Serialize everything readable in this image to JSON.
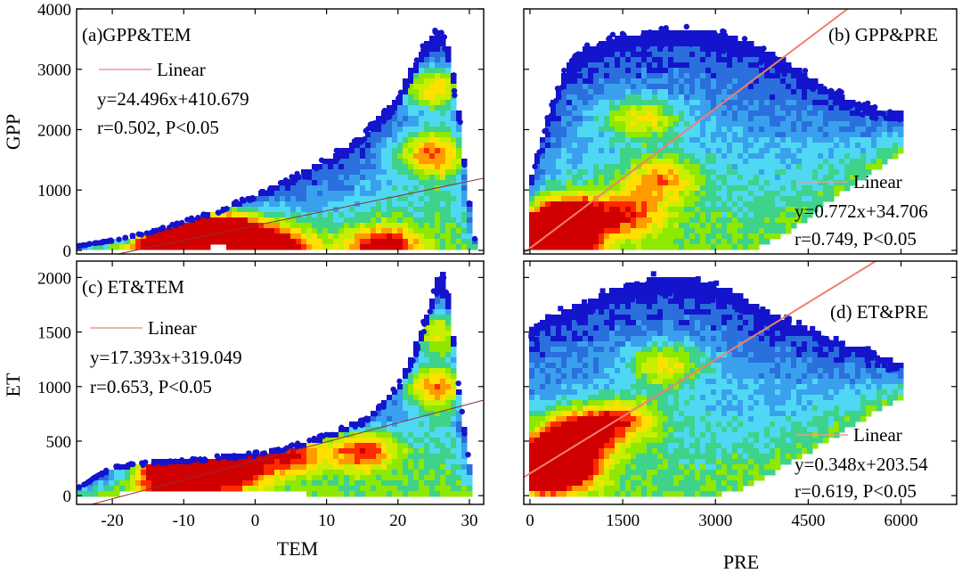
{
  "figure": {
    "x_label_left": "TEM",
    "x_label_right": "PRE",
    "y_label_top": "GPP",
    "y_label_bottom": "ET"
  },
  "colors": {
    "density": [
      "#1414cc",
      "#2a6fdc",
      "#3aa0ee",
      "#4fd8f4",
      "#3fd28a",
      "#8ee800",
      "#c8ee00",
      "#ffe000",
      "#ff9a00",
      "#ff2a00",
      "#d00000"
    ],
    "fit_line_a": "#8b2f3a",
    "fit_line_b": "#f08070",
    "legend_line": "#e89a96"
  },
  "chart_data": [
    {
      "id": "a",
      "type": "scatter",
      "subtype": "density",
      "title": "(a)GPP&TEM",
      "xlabel": "TEM",
      "ylabel": "GPP",
      "xlim": [
        -25,
        32
      ],
      "ylim": [
        -60,
        4000
      ],
      "xticks": [
        -20,
        -10,
        0,
        10,
        20,
        30
      ],
      "yticks": [
        0,
        1000,
        2000,
        3000,
        4000
      ],
      "legend": "Linear",
      "equation": "y=24.496x+410.679",
      "stats": "r=0.502, P<0.05",
      "fit": {
        "slope": 24.496,
        "intercept": 410.679
      },
      "envelope": {
        "upper": [
          [
            -25,
            70
          ],
          [
            -20,
            170
          ],
          [
            -15,
            300
          ],
          [
            -10,
            480
          ],
          [
            -5,
            680
          ],
          [
            0,
            920
          ],
          [
            5,
            1200
          ],
          [
            10,
            1520
          ],
          [
            15,
            1900
          ],
          [
            20,
            2550
          ],
          [
            22,
            3050
          ],
          [
            24,
            3450
          ],
          [
            25.5,
            3640
          ],
          [
            26.5,
            3580
          ],
          [
            27.5,
            3150
          ],
          [
            28.5,
            2300
          ],
          [
            29.5,
            1300
          ],
          [
            30.5,
            300
          ],
          [
            31,
            80
          ]
        ],
        "lower": [
          [
            -25,
            0
          ],
          [
            -15,
            40
          ],
          [
            -5,
            60
          ],
          [
            5,
            40
          ],
          [
            15,
            20
          ],
          [
            25,
            10
          ],
          [
            31,
            10
          ]
        ]
      },
      "density_peaks": [
        [
          -12,
          160,
          0.95
        ],
        [
          -8,
          210,
          0.85
        ],
        [
          -3,
          300,
          0.75
        ],
        [
          3,
          40,
          0.6
        ],
        [
          25,
          1600,
          0.55
        ],
        [
          25,
          2700,
          0.55
        ],
        [
          18,
          40,
          0.6
        ]
      ]
    },
    {
      "id": "b",
      "type": "scatter",
      "subtype": "density",
      "title": "(b) GPP&PRE",
      "xlabel": "PRE",
      "xlim": [
        -100,
        6900
      ],
      "ylim": [
        -60,
        4000
      ],
      "xticks": [
        0,
        1500,
        3000,
        4500,
        6000
      ],
      "yticks": [
        0,
        1000,
        2000,
        3000,
        4000
      ],
      "legend": "Linear",
      "equation": "y=0.772x+34.706",
      "stats": "r=0.749, P<0.05",
      "fit": {
        "slope": 0.772,
        "intercept": 34.706
      },
      "envelope": {
        "upper": [
          [
            0,
            1100
          ],
          [
            300,
            2300
          ],
          [
            600,
            3050
          ],
          [
            900,
            3350
          ],
          [
            1200,
            3480
          ],
          [
            1800,
            3600
          ],
          [
            2400,
            3650
          ],
          [
            3000,
            3600
          ],
          [
            3600,
            3450
          ],
          [
            4200,
            3100
          ],
          [
            4800,
            2700
          ],
          [
            5400,
            2400
          ],
          [
            6000,
            2300
          ]
        ],
        "lower": [
          [
            0,
            0
          ],
          [
            600,
            0
          ],
          [
            1200,
            0
          ],
          [
            1800,
            0
          ],
          [
            2400,
            0
          ],
          [
            3000,
            0
          ],
          [
            3600,
            0
          ],
          [
            4200,
            300
          ],
          [
            4800,
            800
          ],
          [
            5400,
            1200
          ],
          [
            6000,
            1600
          ]
        ]
      },
      "density_peaks": [
        [
          200,
          60,
          1.0
        ],
        [
          350,
          250,
          0.85
        ],
        [
          600,
          600,
          0.6
        ],
        [
          1800,
          2200,
          0.45
        ],
        [
          2100,
          1200,
          0.45
        ],
        [
          1600,
          600,
          0.45
        ]
      ]
    },
    {
      "id": "c",
      "type": "scatter",
      "subtype": "density",
      "title": "(c) ET&TEM",
      "xlabel": "TEM",
      "ylabel": "ET",
      "xlim": [
        -25,
        32
      ],
      "ylim": [
        -80,
        2150
      ],
      "xticks": [
        -20,
        -10,
        0,
        10,
        20,
        30
      ],
      "yticks": [
        0,
        500,
        1000,
        1500,
        2000
      ],
      "legend": "Linear",
      "equation": "y=17.393x+319.049",
      "stats": "r=0.653, P<0.05",
      "fit": {
        "slope": 17.393,
        "intercept": 319.049
      },
      "envelope": {
        "upper": [
          [
            -25,
            70
          ],
          [
            -20,
            260
          ],
          [
            -15,
            310
          ],
          [
            -10,
            330
          ],
          [
            -5,
            360
          ],
          [
            0,
            390
          ],
          [
            5,
            450
          ],
          [
            10,
            560
          ],
          [
            15,
            700
          ],
          [
            20,
            1000
          ],
          [
            22,
            1300
          ],
          [
            24,
            1650
          ],
          [
            25.5,
            2000
          ],
          [
            26.5,
            2050
          ],
          [
            27.5,
            1650
          ],
          [
            28.5,
            1000
          ],
          [
            29.5,
            500
          ],
          [
            30.5,
            100
          ]
        ],
        "lower": [
          [
            -25,
            0
          ],
          [
            -15,
            30
          ],
          [
            -5,
            40
          ],
          [
            5,
            20
          ],
          [
            15,
            10
          ],
          [
            25,
            10
          ],
          [
            31,
            10
          ]
        ]
      },
      "density_peaks": [
        [
          -12,
          230,
          1.0
        ],
        [
          -7,
          290,
          0.95
        ],
        [
          -3,
          300,
          0.85
        ],
        [
          5,
          400,
          0.75
        ],
        [
          15,
          420,
          0.65
        ],
        [
          25,
          1000,
          0.55
        ],
        [
          25,
          1500,
          0.5
        ]
      ]
    },
    {
      "id": "d",
      "type": "scatter",
      "subtype": "density",
      "title": "(d) ET&PRE",
      "xlabel": "PRE",
      "xlim": [
        -100,
        6900
      ],
      "ylim": [
        -80,
        2150
      ],
      "xticks": [
        0,
        1500,
        3000,
        4500,
        6000
      ],
      "yticks": [
        0,
        500,
        1000,
        1500,
        2000
      ],
      "legend": "Linear",
      "equation": "y=0.348x+203.54",
      "stats": "r=0.619, P<0.05",
      "fit": {
        "slope": 0.348,
        "intercept": 203.54
      },
      "envelope": {
        "upper": [
          [
            0,
            1500
          ],
          [
            300,
            1650
          ],
          [
            800,
            1750
          ],
          [
            1400,
            1900
          ],
          [
            2000,
            2000
          ],
          [
            2600,
            2000
          ],
          [
            3200,
            1900
          ],
          [
            3800,
            1700
          ],
          [
            4400,
            1550
          ],
          [
            5000,
            1400
          ],
          [
            5600,
            1300
          ],
          [
            6000,
            1200
          ]
        ],
        "lower": [
          [
            0,
            0
          ],
          [
            600,
            0
          ],
          [
            1200,
            0
          ],
          [
            1800,
            0
          ],
          [
            2400,
            0
          ],
          [
            3000,
            0
          ],
          [
            3600,
            100
          ],
          [
            4200,
            300
          ],
          [
            4800,
            500
          ],
          [
            5400,
            700
          ],
          [
            6000,
            900
          ]
        ]
      },
      "density_peaks": [
        [
          300,
          230,
          1.0
        ],
        [
          500,
          400,
          0.75
        ],
        [
          800,
          600,
          0.55
        ],
        [
          1500,
          700,
          0.45
        ],
        [
          2200,
          1200,
          0.45
        ]
      ]
    }
  ]
}
